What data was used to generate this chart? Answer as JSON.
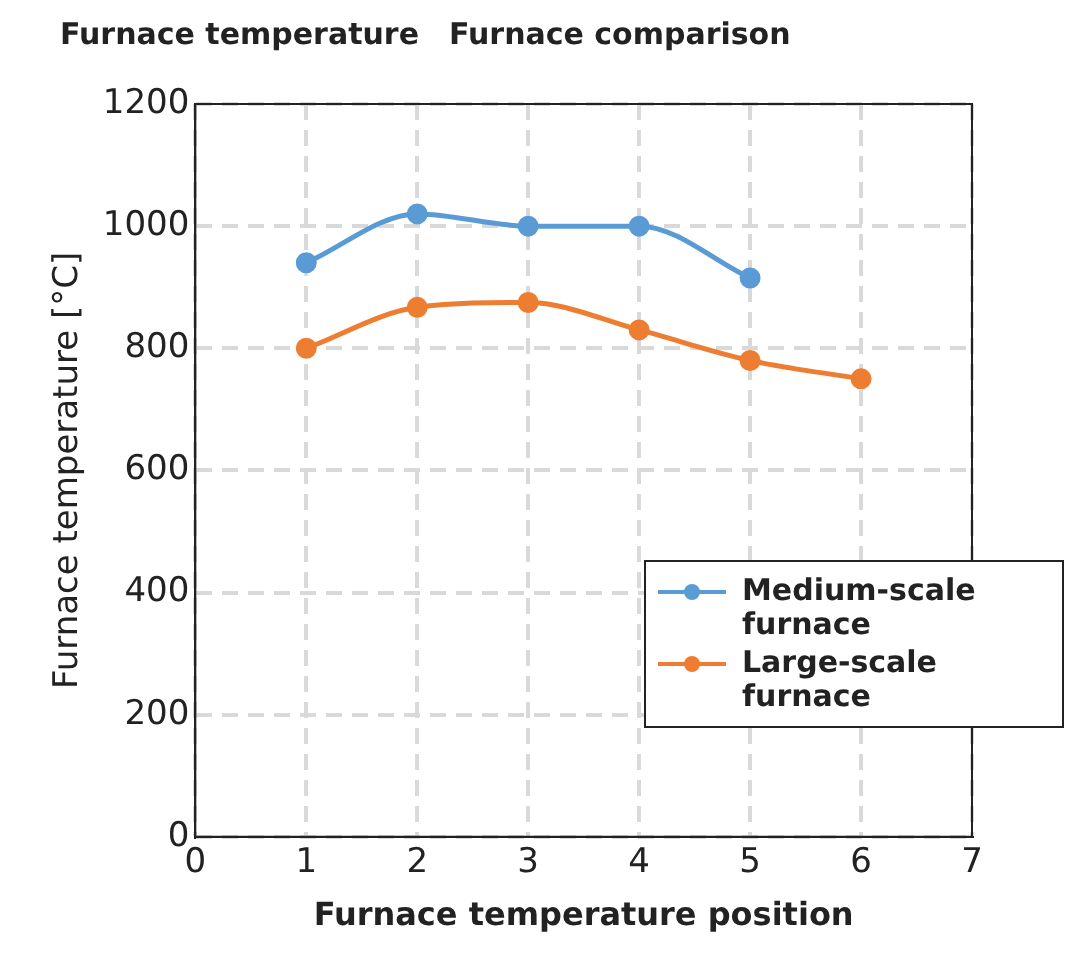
{
  "chart_data": {
    "type": "line",
    "title": "Furnace temperature　Furnace comparison",
    "xlabel": "Furnace temperature position",
    "ylabel": "Furnace temperature [°C]",
    "series": [
      {
        "name": "Medium-scale furnace",
        "color": "#5b9bd5",
        "x": [
          1,
          2,
          3,
          4,
          5
        ],
        "values": [
          940,
          1020,
          1000,
          1000,
          915
        ]
      },
      {
        "name": "Large-scale furnace",
        "color": "#ed7d31",
        "x": [
          1,
          2,
          3,
          4,
          5,
          6
        ],
        "values": [
          800,
          867,
          875,
          830,
          780,
          750
        ]
      }
    ],
    "xlim": [
      0,
      7
    ],
    "xticks": [
      0,
      1,
      2,
      3,
      4,
      5,
      6,
      7
    ],
    "ylim": [
      0,
      1200
    ],
    "yticks": [
      0,
      200,
      400,
      600,
      800,
      1000,
      1200
    ],
    "grid": true,
    "legend": "bottom right",
    "marker": "circle",
    "line_style": "solid"
  }
}
